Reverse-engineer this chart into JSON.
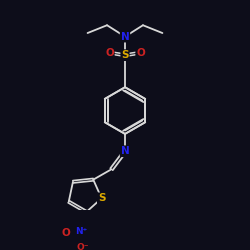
{
  "background_color": "#0d0d1a",
  "bond_color": "#d8d8d8",
  "atom_colors": {
    "N": "#2222ee",
    "O": "#cc2222",
    "S": "#ddaa00",
    "N_plus": "#2222ee",
    "O_minus": "#cc2222"
  },
  "figsize": [
    2.5,
    2.5
  ],
  "dpi": 100
}
